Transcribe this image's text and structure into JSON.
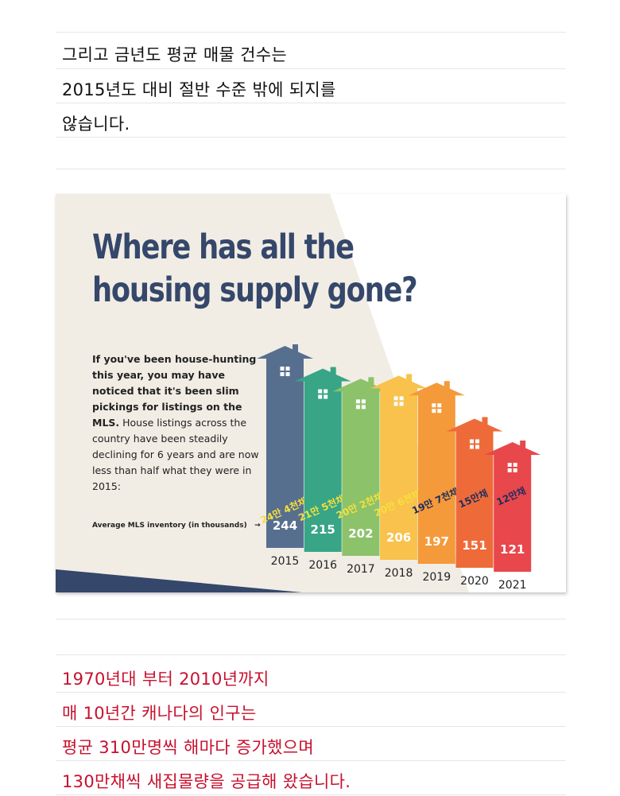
{
  "intro_text": {
    "line1": "그리고 금년도 평균 매물 건수는",
    "line2": "2015년도 대비 절반 수준 밖에 되지를",
    "line3": "않습니다."
  },
  "infographic": {
    "title_line1": "Where has all the",
    "title_line2": "housing supply gone?",
    "intro_bold": "If you've been house-hunting this year, you may have noticed that it's been slim pickings for listings on the MLS.",
    "intro_regular": " House listings across the country have been steadily declining for 6 years and are now less than half what they were in 2015:",
    "inventory_label": "Average MLS inventory (in thousands)",
    "arrow": "→"
  },
  "chart_data": {
    "type": "bar",
    "categories": [
      "2015",
      "2016",
      "2017",
      "2018",
      "2019",
      "2020",
      "2021"
    ],
    "values": [
      244,
      215,
      202,
      206,
      197,
      151,
      121
    ],
    "value_labels": [
      "244",
      "215",
      "202",
      "206",
      "197",
      "151",
      "121"
    ],
    "annotations": [
      "24만 4천채",
      "21만 5천채",
      "20만 2천채",
      "20만 6천채",
      "19만 7천채",
      "15만채",
      "12만채"
    ],
    "colors": [
      "#576f8f",
      "#37a586",
      "#8cc26a",
      "#f8c24d",
      "#f49a3a",
      "#ee6b39",
      "#e8474c"
    ],
    "annotation_colors": [
      "#f7e03c",
      "#f7e03c",
      "#f7e03c",
      "#f7e03c",
      "#1e2d5c",
      "#1e2d5c",
      "#1e2d5c"
    ],
    "title": "Where has all the housing supply gone?",
    "ylabel": "Average MLS inventory (in thousands)"
  },
  "closing_text": {
    "line1": "1970년대 부터 2010년까지",
    "line2": "매 10년간 캐나다의 인구는",
    "line3": "평균 310만명씩 해마다 증가했으며",
    "line4": "130만채씩 새집물량을 공급해 왔습니다."
  }
}
